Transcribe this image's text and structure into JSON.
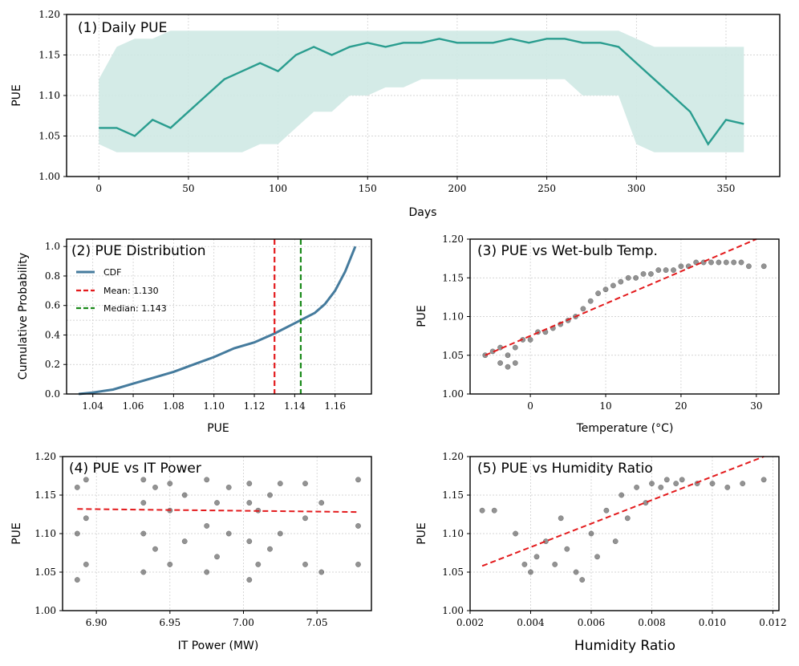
{
  "colors": {
    "teal": "#2a9d8f",
    "teal_band": "#cfe9e4",
    "cdf_blue": "#457b9d",
    "mean_red": "#e31a1c",
    "median_green": "#1a8a1a",
    "dots": "#3a3a3a",
    "fit_red": "#e31a1c"
  },
  "chart_data": [
    {
      "id": "p1",
      "type": "line",
      "title": "(1) Daily PUE",
      "xlabel": "Days",
      "ylabel": "PUE",
      "xlim": [
        -18,
        380
      ],
      "ylim": [
        1.0,
        1.2
      ],
      "xticks": [
        0,
        50,
        100,
        150,
        200,
        250,
        300,
        350
      ],
      "yticks": [
        1.0,
        1.05,
        1.1,
        1.15,
        1.2
      ],
      "x": [
        0,
        10,
        20,
        30,
        40,
        50,
        60,
        70,
        80,
        90,
        100,
        110,
        120,
        130,
        140,
        150,
        160,
        170,
        180,
        190,
        200,
        210,
        220,
        230,
        240,
        250,
        260,
        270,
        280,
        290,
        300,
        310,
        320,
        330,
        340,
        350,
        360
      ],
      "y": [
        1.06,
        1.06,
        1.05,
        1.07,
        1.06,
        1.08,
        1.1,
        1.12,
        1.13,
        1.14,
        1.13,
        1.15,
        1.16,
        1.15,
        1.16,
        1.165,
        1.16,
        1.165,
        1.165,
        1.17,
        1.165,
        1.165,
        1.165,
        1.17,
        1.165,
        1.17,
        1.17,
        1.165,
        1.165,
        1.16,
        1.14,
        1.12,
        1.1,
        1.08,
        1.04,
        1.07,
        1.065
      ],
      "band_lower": [
        1.04,
        1.03,
        1.03,
        1.03,
        1.03,
        1.03,
        1.03,
        1.03,
        1.03,
        1.04,
        1.04,
        1.06,
        1.08,
        1.08,
        1.1,
        1.1,
        1.11,
        1.11,
        1.12,
        1.12,
        1.12,
        1.12,
        1.12,
        1.12,
        1.12,
        1.12,
        1.12,
        1.1,
        1.1,
        1.1,
        1.04,
        1.03,
        1.03,
        1.03,
        1.03,
        1.03,
        1.03
      ],
      "band_upper": [
        1.12,
        1.16,
        1.17,
        1.17,
        1.18,
        1.18,
        1.18,
        1.18,
        1.18,
        1.18,
        1.18,
        1.18,
        1.18,
        1.18,
        1.18,
        1.18,
        1.18,
        1.18,
        1.18,
        1.18,
        1.18,
        1.18,
        1.18,
        1.18,
        1.18,
        1.18,
        1.18,
        1.18,
        1.18,
        1.18,
        1.17,
        1.16,
        1.16,
        1.16,
        1.16,
        1.16,
        1.16
      ]
    },
    {
      "id": "p2",
      "type": "line",
      "title": "(2) PUE Distribution",
      "xlabel": "PUE",
      "ylabel": "Cumulative Probability",
      "xlim": [
        1.027,
        1.178
      ],
      "ylim": [
        0.0,
        1.05
      ],
      "xticks": [
        1.04,
        1.06,
        1.08,
        1.1,
        1.12,
        1.14,
        1.16
      ],
      "yticks": [
        0.0,
        0.2,
        0.4,
        0.6,
        0.8,
        1.0
      ],
      "x": [
        1.033,
        1.04,
        1.05,
        1.06,
        1.07,
        1.08,
        1.09,
        1.1,
        1.11,
        1.12,
        1.13,
        1.14,
        1.15,
        1.155,
        1.16,
        1.165,
        1.17
      ],
      "y": [
        0.0,
        0.01,
        0.03,
        0.07,
        0.11,
        0.15,
        0.2,
        0.25,
        0.31,
        0.35,
        0.41,
        0.48,
        0.55,
        0.61,
        0.7,
        0.83,
        1.0
      ],
      "mean": 1.13,
      "median": 1.143,
      "ref_y": 0.5,
      "legend": [
        "CDF",
        "Mean: 1.130",
        "Median: 1.143"
      ]
    },
    {
      "id": "p3",
      "type": "scatter",
      "title": "(3) PUE vs Wet-bulb Temp.",
      "xlabel": "Temperature (°C)",
      "ylabel": "PUE",
      "xlim": [
        -8,
        33
      ],
      "ylim": [
        1.0,
        1.2
      ],
      "xticks": [
        0,
        10,
        20,
        30
      ],
      "yticks": [
        1.0,
        1.05,
        1.1,
        1.15,
        1.2
      ],
      "trend": [
        [
          -6,
          1.05
        ],
        [
          30,
          1.2
        ]
      ],
      "points": [
        [
          -6,
          1.05
        ],
        [
          -5,
          1.055
        ],
        [
          -4,
          1.04
        ],
        [
          -4,
          1.06
        ],
        [
          -3,
          1.035
        ],
        [
          -3,
          1.05
        ],
        [
          -2,
          1.06
        ],
        [
          -2,
          1.04
        ],
        [
          -1,
          1.07
        ],
        [
          0,
          1.07
        ],
        [
          1,
          1.08
        ],
        [
          2,
          1.08
        ],
        [
          3,
          1.085
        ],
        [
          4,
          1.09
        ],
        [
          5,
          1.095
        ],
        [
          6,
          1.1
        ],
        [
          7,
          1.11
        ],
        [
          8,
          1.12
        ],
        [
          9,
          1.13
        ],
        [
          10,
          1.135
        ],
        [
          11,
          1.14
        ],
        [
          12,
          1.145
        ],
        [
          13,
          1.15
        ],
        [
          14,
          1.15
        ],
        [
          15,
          1.155
        ],
        [
          16,
          1.155
        ],
        [
          17,
          1.16
        ],
        [
          18,
          1.16
        ],
        [
          19,
          1.16
        ],
        [
          20,
          1.165
        ],
        [
          21,
          1.165
        ],
        [
          22,
          1.17
        ],
        [
          23,
          1.17
        ],
        [
          24,
          1.17
        ],
        [
          25,
          1.17
        ],
        [
          26,
          1.17
        ],
        [
          27,
          1.17
        ],
        [
          28,
          1.17
        ],
        [
          29,
          1.165
        ],
        [
          31,
          1.165
        ]
      ]
    },
    {
      "id": "p4",
      "type": "scatter",
      "title": "(4) PUE vs IT Power",
      "xlabel": "IT Power (MW)",
      "ylabel": "PUE",
      "xlim": [
        6.877,
        7.087
      ],
      "ylim": [
        1.0,
        1.2
      ],
      "xticks": [
        6.9,
        6.95,
        7.0,
        7.05
      ],
      "yticks": [
        1.0,
        1.05,
        1.1,
        1.15,
        1.2
      ],
      "trend": [
        [
          6.887,
          1.132
        ],
        [
          7.078,
          1.128
        ]
      ],
      "points": [
        [
          6.887,
          1.04
        ],
        [
          6.887,
          1.1
        ],
        [
          6.887,
          1.16
        ],
        [
          6.893,
          1.06
        ],
        [
          6.893,
          1.12
        ],
        [
          6.893,
          1.17
        ],
        [
          6.932,
          1.05
        ],
        [
          6.932,
          1.1
        ],
        [
          6.932,
          1.14
        ],
        [
          6.932,
          1.17
        ],
        [
          6.94,
          1.08
        ],
        [
          6.94,
          1.16
        ],
        [
          6.95,
          1.06
        ],
        [
          6.95,
          1.13
        ],
        [
          6.95,
          1.165
        ],
        [
          6.96,
          1.09
        ],
        [
          6.96,
          1.15
        ],
        [
          6.975,
          1.05
        ],
        [
          6.975,
          1.11
        ],
        [
          6.975,
          1.17
        ],
        [
          6.982,
          1.07
        ],
        [
          6.982,
          1.14
        ],
        [
          6.99,
          1.1
        ],
        [
          6.99,
          1.16
        ],
        [
          7.004,
          1.04
        ],
        [
          7.004,
          1.09
        ],
        [
          7.004,
          1.14
        ],
        [
          7.004,
          1.165
        ],
        [
          7.01,
          1.06
        ],
        [
          7.01,
          1.13
        ],
        [
          7.018,
          1.08
        ],
        [
          7.018,
          1.15
        ],
        [
          7.025,
          1.1
        ],
        [
          7.025,
          1.165
        ],
        [
          7.042,
          1.06
        ],
        [
          7.042,
          1.12
        ],
        [
          7.042,
          1.165
        ],
        [
          7.053,
          1.05
        ],
        [
          7.053,
          1.14
        ],
        [
          7.078,
          1.06
        ],
        [
          7.078,
          1.11
        ],
        [
          7.078,
          1.17
        ]
      ]
    },
    {
      "id": "p5",
      "type": "scatter",
      "title": "(5) PUE vs Humidity Ratio",
      "xlabel": "Humidity Ratio",
      "ylabel": "PUE",
      "xlim": [
        0.002,
        0.0122
      ],
      "ylim": [
        1.0,
        1.2
      ],
      "xticks": [
        0.002,
        0.004,
        0.006,
        0.008,
        0.01,
        0.012
      ],
      "yticks": [
        1.0,
        1.05,
        1.1,
        1.15,
        1.2
      ],
      "trend": [
        [
          0.0024,
          1.058
        ],
        [
          0.0117,
          1.2
        ]
      ],
      "points": [
        [
          0.0024,
          1.13
        ],
        [
          0.0028,
          1.13
        ],
        [
          0.0035,
          1.1
        ],
        [
          0.0038,
          1.06
        ],
        [
          0.004,
          1.05
        ],
        [
          0.0042,
          1.07
        ],
        [
          0.0045,
          1.09
        ],
        [
          0.0048,
          1.06
        ],
        [
          0.005,
          1.12
        ],
        [
          0.0052,
          1.08
        ],
        [
          0.0055,
          1.05
        ],
        [
          0.0057,
          1.04
        ],
        [
          0.006,
          1.1
        ],
        [
          0.0062,
          1.07
        ],
        [
          0.0065,
          1.13
        ],
        [
          0.0068,
          1.09
        ],
        [
          0.007,
          1.15
        ],
        [
          0.0072,
          1.12
        ],
        [
          0.0075,
          1.16
        ],
        [
          0.0078,
          1.14
        ],
        [
          0.008,
          1.165
        ],
        [
          0.0083,
          1.16
        ],
        [
          0.0085,
          1.17
        ],
        [
          0.0088,
          1.165
        ],
        [
          0.009,
          1.17
        ],
        [
          0.0095,
          1.165
        ],
        [
          0.01,
          1.165
        ],
        [
          0.0105,
          1.16
        ],
        [
          0.011,
          1.165
        ],
        [
          0.0117,
          1.17
        ]
      ]
    }
  ]
}
